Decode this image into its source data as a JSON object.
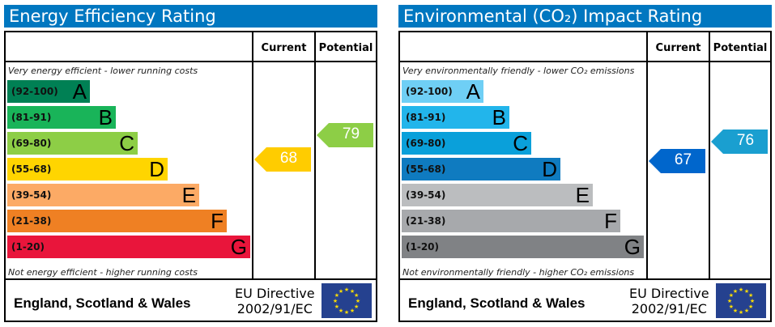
{
  "chart_data": [
    {
      "type": "bar",
      "title": "Energy Efficiency Rating",
      "columns": [
        "Current",
        "Potential"
      ],
      "top_note": "Very energy efficient - lower running costs",
      "bottom_note": "Not energy efficient - higher running costs",
      "bands": [
        {
          "range": "(92-100)",
          "letter": "A",
          "color": "#008054"
        },
        {
          "range": "(81-91)",
          "letter": "B",
          "color": "#19b459"
        },
        {
          "range": "(69-80)",
          "letter": "C",
          "color": "#8dce46"
        },
        {
          "range": "(55-68)",
          "letter": "D",
          "color": "#ffd500"
        },
        {
          "range": "(39-54)",
          "letter": "E",
          "color": "#fcaa65"
        },
        {
          "range": "(21-38)",
          "letter": "F",
          "color": "#ef8023"
        },
        {
          "range": "(1-20)",
          "letter": "G",
          "color": "#e9153b"
        }
      ],
      "current": {
        "value": "68",
        "color": "#ffcc00"
      },
      "potential": {
        "value": "79",
        "color": "#8dce46"
      },
      "footer": "England, Scotland & Wales",
      "directive": [
        "EU Directive",
        "2002/91/EC"
      ]
    },
    {
      "type": "bar",
      "title": "Environmental (CO₂) Impact Rating",
      "columns": [
        "Current",
        "Potential"
      ],
      "top_note": "Very environmentally friendly - lower CO₂ emissions",
      "bottom_note": "Not environmentally friendly - higher CO₂ emissions",
      "bands": [
        {
          "range": "(92-100)",
          "letter": "A",
          "color": "#6fcff5"
        },
        {
          "range": "(81-91)",
          "letter": "B",
          "color": "#22b5eb"
        },
        {
          "range": "(69-80)",
          "letter": "C",
          "color": "#0aa0da"
        },
        {
          "range": "(55-68)",
          "letter": "D",
          "color": "#0f7bc0"
        },
        {
          "range": "(39-54)",
          "letter": "E",
          "color": "#bbbdbf"
        },
        {
          "range": "(21-38)",
          "letter": "F",
          "color": "#a7a9ac"
        },
        {
          "range": "(1-20)",
          "letter": "G",
          "color": "#808285"
        }
      ],
      "current": {
        "value": "67",
        "color": "#0066cc"
      },
      "potential": {
        "value": "76",
        "color": "#1a9fd0"
      },
      "footer": "England, Scotland & Wales",
      "directive": [
        "EU Directive",
        "2002/91/EC"
      ]
    }
  ]
}
